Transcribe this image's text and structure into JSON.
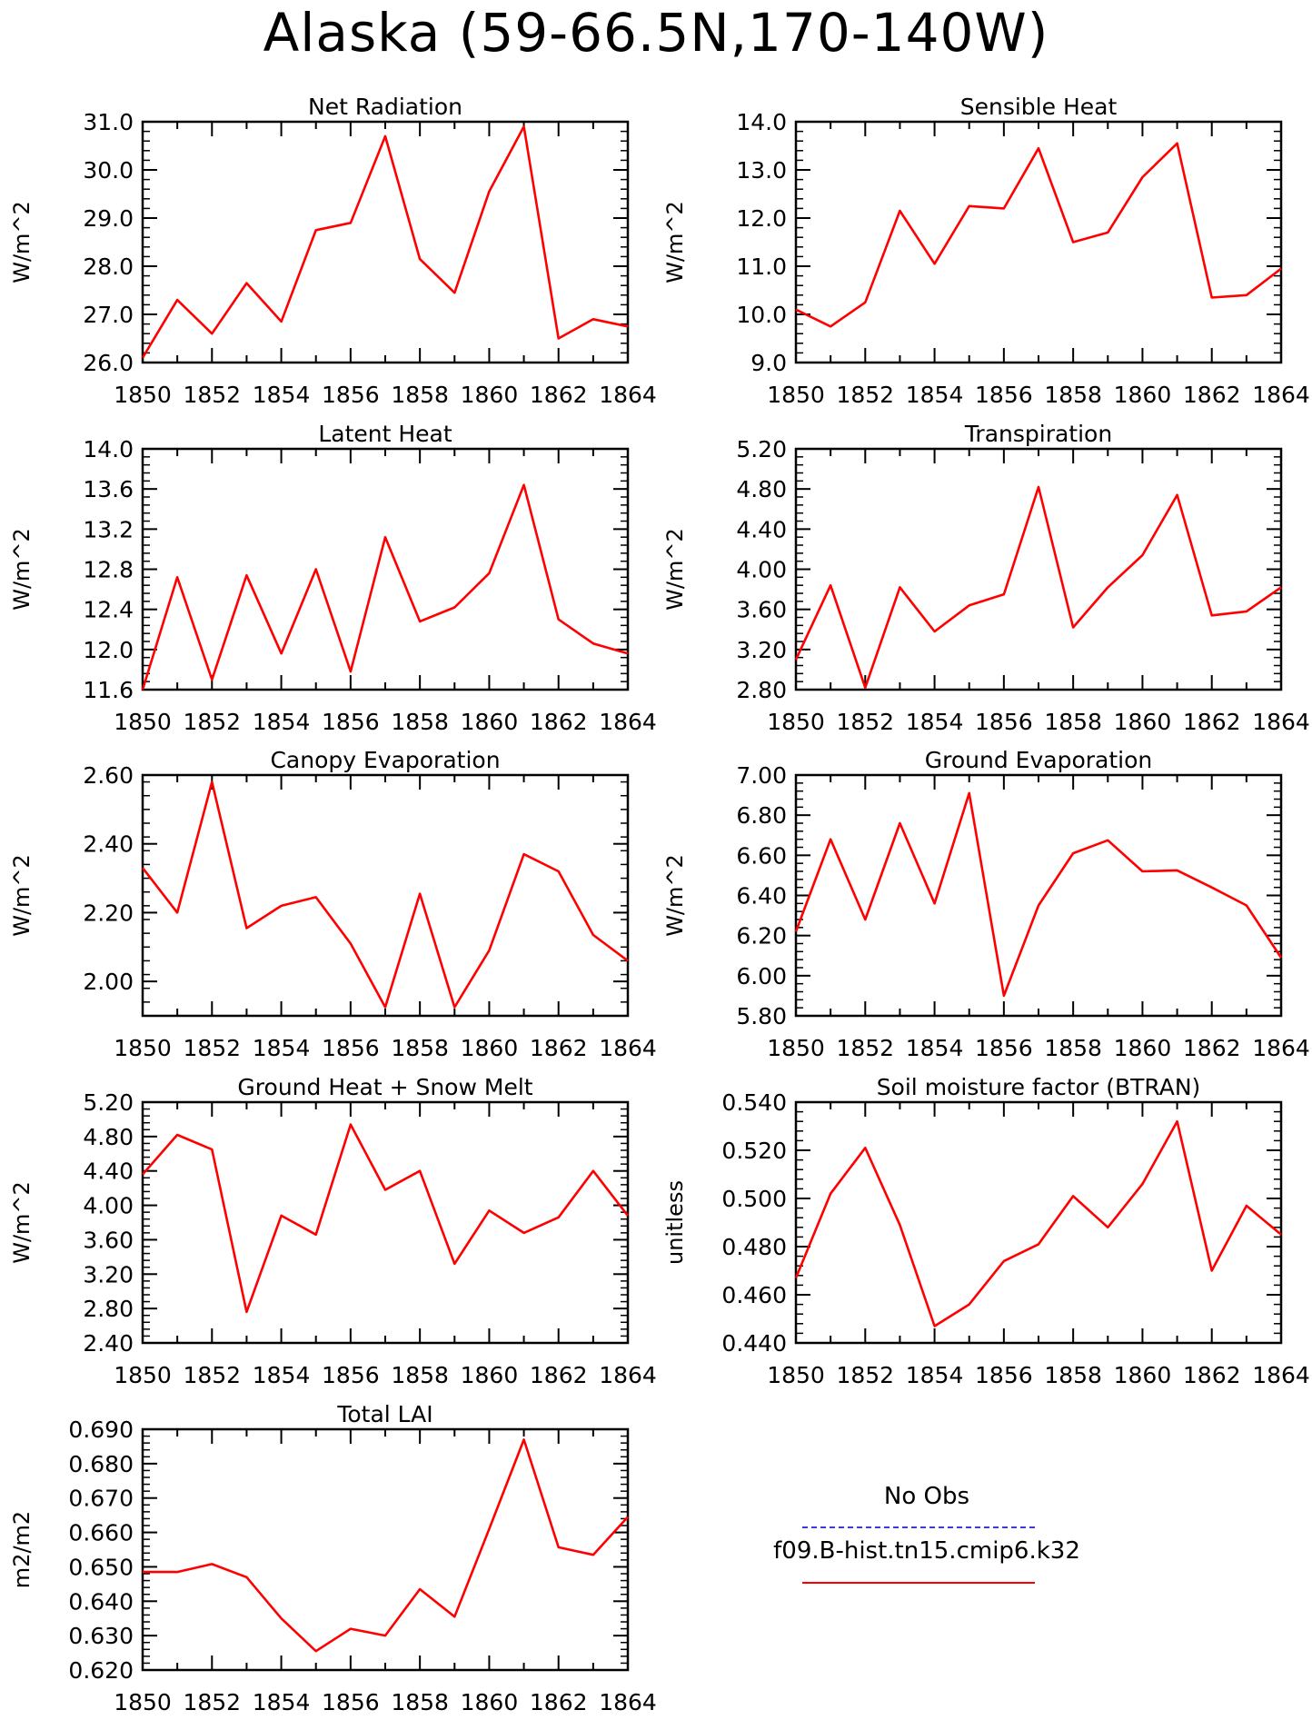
{
  "title": "Alaska (59-66.5N,170-140W)",
  "legend": {
    "obs_label": "No Obs",
    "obs_color": "#3a3ae8",
    "model_label": "f09.B-hist.tn15.cmip6.k32",
    "model_color": "#ff0000"
  },
  "chart_data": [
    {
      "type": "line",
      "title": "Net Radiation",
      "ylabel": "W/m^2",
      "x": [
        1850,
        1851,
        1852,
        1853,
        1854,
        1855,
        1856,
        1857,
        1858,
        1859,
        1860,
        1861,
        1862,
        1863,
        1864
      ],
      "series": [
        {
          "color": "#ff0000",
          "values": [
            26.1,
            27.3,
            26.6,
            27.65,
            26.85,
            28.75,
            28.9,
            30.7,
            28.15,
            27.45,
            29.55,
            30.9,
            26.5,
            26.9,
            26.75
          ]
        }
      ],
      "xlim": [
        1850,
        1864
      ],
      "ylim": [
        26.0,
        31.0
      ],
      "yticks": [
        "26.0",
        "27.0",
        "28.0",
        "29.0",
        "30.0",
        "31.0"
      ],
      "xticks": [
        "1850",
        "1852",
        "1854",
        "1856",
        "1858",
        "1860",
        "1862",
        "1864"
      ]
    },
    {
      "type": "line",
      "title": "Sensible Heat",
      "ylabel": "W/m^2",
      "x": [
        1850,
        1851,
        1852,
        1853,
        1854,
        1855,
        1856,
        1857,
        1858,
        1859,
        1860,
        1861,
        1862,
        1863,
        1864
      ],
      "series": [
        {
          "color": "#ff0000",
          "values": [
            10.1,
            9.75,
            10.25,
            12.15,
            11.05,
            12.25,
            12.2,
            13.45,
            11.5,
            11.7,
            12.85,
            13.55,
            10.35,
            10.4,
            10.95
          ]
        }
      ],
      "xlim": [
        1850,
        1864
      ],
      "ylim": [
        9.0,
        14.0
      ],
      "yticks": [
        "9.0",
        "10.0",
        "11.0",
        "12.0",
        "13.0",
        "14.0"
      ],
      "xticks": [
        "1850",
        "1852",
        "1854",
        "1856",
        "1858",
        "1860",
        "1862",
        "1864"
      ]
    },
    {
      "type": "line",
      "title": "Latent Heat",
      "ylabel": "W/m^2",
      "x": [
        1850,
        1851,
        1852,
        1853,
        1854,
        1855,
        1856,
        1857,
        1858,
        1859,
        1860,
        1861,
        1862,
        1863,
        1864
      ],
      "series": [
        {
          "color": "#ff0000",
          "values": [
            11.6,
            12.72,
            11.7,
            12.74,
            11.96,
            12.8,
            11.78,
            13.12,
            12.28,
            12.42,
            12.76,
            13.64,
            12.3,
            12.06,
            11.96
          ]
        }
      ],
      "xlim": [
        1850,
        1864
      ],
      "ylim": [
        11.6,
        14.0
      ],
      "yticks": [
        "11.6",
        "12.0",
        "12.4",
        "12.8",
        "13.2",
        "13.6",
        "14.0"
      ],
      "xticks": [
        "1850",
        "1852",
        "1854",
        "1856",
        "1858",
        "1860",
        "1862",
        "1864"
      ]
    },
    {
      "type": "line",
      "title": "Transpiration",
      "ylabel": "W/m^2",
      "x": [
        1850,
        1851,
        1852,
        1853,
        1854,
        1855,
        1856,
        1857,
        1858,
        1859,
        1860,
        1861,
        1862,
        1863,
        1864
      ],
      "series": [
        {
          "color": "#ff0000",
          "values": [
            3.1,
            3.84,
            2.82,
            3.82,
            3.38,
            3.64,
            3.75,
            4.82,
            3.42,
            3.82,
            4.14,
            4.74,
            3.54,
            3.58,
            3.82
          ]
        }
      ],
      "xlim": [
        1850,
        1864
      ],
      "ylim": [
        2.8,
        5.2
      ],
      "yticks": [
        "2.80",
        "3.20",
        "3.60",
        "4.00",
        "4.40",
        "4.80",
        "5.20"
      ],
      "xticks": [
        "1850",
        "1852",
        "1854",
        "1856",
        "1858",
        "1860",
        "1862",
        "1864"
      ]
    },
    {
      "type": "line",
      "title": "Canopy Evaporation",
      "ylabel": "W/m^2",
      "x": [
        1850,
        1851,
        1852,
        1853,
        1854,
        1855,
        1856,
        1857,
        1858,
        1859,
        1860,
        1861,
        1862,
        1863,
        1864
      ],
      "series": [
        {
          "color": "#ff0000",
          "values": [
            2.33,
            2.2,
            2.58,
            2.155,
            2.22,
            2.245,
            2.11,
            1.925,
            2.255,
            1.925,
            2.09,
            2.37,
            2.32,
            2.135,
            2.06
          ]
        }
      ],
      "xlim": [
        1850,
        1864
      ],
      "ylim": [
        1.9,
        2.6
      ],
      "yticks": [
        "2.00",
        "2.20",
        "2.40",
        "2.60"
      ],
      "ytick_values": [
        2.0,
        2.2,
        2.4,
        2.6
      ],
      "xticks": [
        "1850",
        "1852",
        "1854",
        "1856",
        "1858",
        "1860",
        "1862",
        "1864"
      ]
    },
    {
      "type": "line",
      "title": "Ground Evaporation",
      "ylabel": "W/m^2",
      "x": [
        1850,
        1851,
        1852,
        1853,
        1854,
        1855,
        1856,
        1857,
        1858,
        1859,
        1860,
        1861,
        1862,
        1863,
        1864
      ],
      "series": [
        {
          "color": "#ff0000",
          "values": [
            6.22,
            6.68,
            6.28,
            6.76,
            6.36,
            6.91,
            5.9,
            6.35,
            6.61,
            6.675,
            6.52,
            6.525,
            6.44,
            6.35,
            6.09
          ]
        }
      ],
      "xlim": [
        1850,
        1864
      ],
      "ylim": [
        5.8,
        7.0
      ],
      "yticks": [
        "5.80",
        "6.00",
        "6.20",
        "6.40",
        "6.60",
        "6.80",
        "7.00"
      ],
      "xticks": [
        "1850",
        "1852",
        "1854",
        "1856",
        "1858",
        "1860",
        "1862",
        "1864"
      ]
    },
    {
      "type": "line",
      "title": "Ground Heat + Snow Melt",
      "ylabel": "W/m^2",
      "x": [
        1850,
        1851,
        1852,
        1853,
        1854,
        1855,
        1856,
        1857,
        1858,
        1859,
        1860,
        1861,
        1862,
        1863,
        1864
      ],
      "series": [
        {
          "color": "#ff0000",
          "values": [
            4.36,
            4.82,
            4.65,
            2.76,
            3.88,
            3.66,
            4.94,
            4.18,
            4.4,
            3.32,
            3.94,
            3.68,
            3.86,
            4.4,
            3.88
          ]
        }
      ],
      "xlim": [
        1850,
        1864
      ],
      "ylim": [
        2.4,
        5.2
      ],
      "yticks": [
        "2.40",
        "2.80",
        "3.20",
        "3.60",
        "4.00",
        "4.40",
        "4.80",
        "5.20"
      ],
      "xticks": [
        "1850",
        "1852",
        "1854",
        "1856",
        "1858",
        "1860",
        "1862",
        "1864"
      ]
    },
    {
      "type": "line",
      "title": "Soil moisture factor (BTRAN)",
      "ylabel": "unitless",
      "x": [
        1850,
        1851,
        1852,
        1853,
        1854,
        1855,
        1856,
        1857,
        1858,
        1859,
        1860,
        1861,
        1862,
        1863,
        1864
      ],
      "series": [
        {
          "color": "#ff0000",
          "values": [
            0.467,
            0.502,
            0.521,
            0.489,
            0.447,
            0.456,
            0.474,
            0.481,
            0.501,
            0.488,
            0.506,
            0.532,
            0.47,
            0.497,
            0.485
          ]
        }
      ],
      "xlim": [
        1850,
        1864
      ],
      "ylim": [
        0.44,
        0.54
      ],
      "yticks": [
        "0.440",
        "0.460",
        "0.480",
        "0.500",
        "0.520",
        "0.540"
      ],
      "xticks": [
        "1850",
        "1852",
        "1854",
        "1856",
        "1858",
        "1860",
        "1862",
        "1864"
      ]
    },
    {
      "type": "line",
      "title": "Total LAI",
      "ylabel": "m2/m2",
      "x": [
        1850,
        1851,
        1852,
        1853,
        1854,
        1855,
        1856,
        1857,
        1858,
        1859,
        1860,
        1861,
        1862,
        1863,
        1864
      ],
      "series": [
        {
          "color": "#ff0000",
          "values": [
            0.6485,
            0.6485,
            0.6508,
            0.647,
            0.635,
            0.6255,
            0.632,
            0.63,
            0.6435,
            0.6355,
            0.661,
            0.687,
            0.6557,
            0.6535,
            0.6645
          ]
        }
      ],
      "xlim": [
        1850,
        1864
      ],
      "ylim": [
        0.62,
        0.69
      ],
      "yticks": [
        "0.620",
        "0.630",
        "0.640",
        "0.650",
        "0.660",
        "0.670",
        "0.680",
        "0.690"
      ],
      "xticks": [
        "1850",
        "1852",
        "1854",
        "1856",
        "1858",
        "1860",
        "1862",
        "1864"
      ]
    }
  ]
}
